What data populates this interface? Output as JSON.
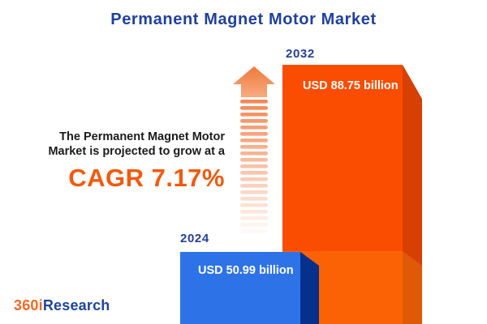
{
  "title": "Permanent Magnet Motor Market",
  "annotation": {
    "line1": "The Permanent Magnet Motor",
    "line2": "Market is projected to grow at a",
    "cagr": "CAGR 7.17%"
  },
  "bars": [
    {
      "year": "2024",
      "value_label": "USD 50.99 billion"
    },
    {
      "year": "2032",
      "value_label": "USD 88.75 billion"
    }
  ],
  "logo": {
    "orange_part": "360i",
    "blue_part": "Research"
  },
  "icons": {
    "growth_arrow": "striped-up-arrow"
  },
  "colors": {
    "title_blue": "#1F419E",
    "year_label_blue": "#24409A",
    "cagr_orange": "#F3590E",
    "bar_2032_front": "#FA4D01",
    "bar_2032_side": "#D64103",
    "bar_2032_front_lower": "#FB6206",
    "bar_2032_side_lower": "#E05906",
    "bar_2024_front": "#2E72E8",
    "bar_2024_side": "#05308C",
    "arrow_orange": "#F28049",
    "logo_orange": "#F26A21",
    "logo_blue": "#1F449D",
    "background": "#FFFFFF"
  },
  "chart_data": {
    "type": "bar",
    "title": "Permanent Magnet Motor Market",
    "categories": [
      "2024",
      "2032"
    ],
    "values": [
      50.99,
      88.75
    ],
    "unit": "USD billion",
    "value_labels": [
      "USD 50.99 billion",
      "USD 88.75 billion"
    ],
    "cagr_percent": 7.17,
    "annotation": "The Permanent Magnet Motor Market is projected to grow at a CAGR 7.17%",
    "legend": false,
    "axes_visible": false,
    "style": "pictorial 3D extruded bars with fading striped growth arrow"
  }
}
